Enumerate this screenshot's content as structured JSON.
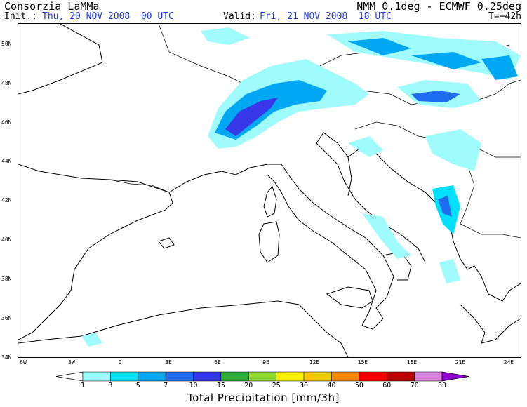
{
  "header": {
    "org": "Consorzia LaMMa",
    "init_label": "Init.:",
    "init_value": "Thu, 20 NOV 2008  00 UTC",
    "model": "NMM 0.1deg - ECMWF 0.25deg",
    "valid_label": "Valid:",
    "valid_value": "Fri, 21 NOV 2008  18 UTC",
    "forecast_step": "T=+42h"
  },
  "map": {
    "lat_labels": [
      "50N",
      "48N",
      "46N",
      "44N",
      "42N",
      "40N",
      "38N",
      "36N",
      "34N"
    ],
    "lon_labels": [
      "6W",
      "3W",
      "0",
      "3E",
      "6E",
      "9E",
      "12E",
      "15E",
      "18E",
      "21E",
      "24E"
    ]
  },
  "legend": {
    "title": "Total Precipitation [mm/3h]",
    "thresholds": [
      "1",
      "3",
      "5",
      "7",
      "10",
      "15",
      "20",
      "25",
      "30",
      "40",
      "50",
      "60",
      "70",
      "80"
    ],
    "colors": [
      "#a0fcfc",
      "#00e0fc",
      "#00a8f4",
      "#1e6cf0",
      "#3838e8",
      "#30b030",
      "#90d830",
      "#f8f000",
      "#f8c800",
      "#f88800",
      "#f00000",
      "#b80000",
      "#e080e0",
      "#c040c0",
      "#9000d0"
    ]
  }
}
